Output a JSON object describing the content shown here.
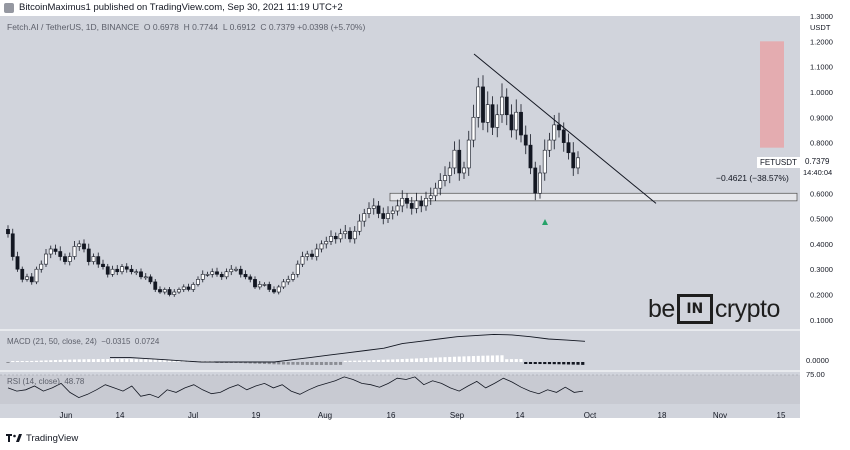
{
  "header": {
    "published_by": "BitcoinMaximus1 published on TradingView.com, Sep 30, 2021 11:19 UTC+2"
  },
  "legend": {
    "symbol": "Fetch.AI / TetherUS, 1D, BINANCE",
    "open_label": "O",
    "open": "0.6978",
    "high_label": "H",
    "high": "0.7744",
    "low_label": "L",
    "low": "0.6912",
    "close_label": "C",
    "close": "0.7379",
    "change": "+0.0398 (+5.70%)"
  },
  "price_axis": {
    "currency": "USDT",
    "ticks": [
      "1.3000",
      "1.2000",
      "1.1000",
      "1.0000",
      "0.9000",
      "0.8000",
      "0.6000",
      "0.5000",
      "0.4000",
      "0.3000",
      "0.2000",
      "0.1000"
    ]
  },
  "price_tag": {
    "symbol": "FETUSDT",
    "value": "0.7379",
    "countdown": "14:40:04"
  },
  "measure": {
    "text": "−0.4621 (−38.57%)"
  },
  "macd": {
    "label": "MACD (21, 50, close, 24)",
    "v1": "−0.0315",
    "v2": "0.0724",
    "zero_tick": "0.0000"
  },
  "rsi": {
    "label": "RSI (14, close)",
    "value": "48.78",
    "top_tick": "75.00"
  },
  "time_axis": [
    "Jun",
    "14",
    "Jul",
    "19",
    "Aug",
    "16",
    "Sep",
    "14",
    "Oct",
    "18",
    "Nov",
    "15"
  ],
  "watermark": {
    "left": "be",
    "middle": "IN",
    "right": "crypto"
  },
  "footer": {
    "brand": "TradingView"
  },
  "chart_data": {
    "type": "candlestick",
    "title": "Fetch.AI / TetherUS, 1D, BINANCE",
    "ylim": [
      0.1,
      1.3
    ],
    "support_zone": [
      0.57,
      0.6
    ],
    "target_zone": [
      0.78,
      1.2
    ],
    "trendline": {
      "from": [
        "Sep 7",
        1.15
      ],
      "to": [
        "Oct 21",
        0.56
      ]
    },
    "closes": [
      0.44,
      0.35,
      0.3,
      0.26,
      0.27,
      0.25,
      0.3,
      0.32,
      0.36,
      0.38,
      0.37,
      0.35,
      0.33,
      0.35,
      0.39,
      0.4,
      0.38,
      0.33,
      0.35,
      0.32,
      0.31,
      0.28,
      0.3,
      0.29,
      0.31,
      0.3,
      0.29,
      0.29,
      0.27,
      0.27,
      0.25,
      0.22,
      0.21,
      0.22,
      0.2,
      0.21,
      0.22,
      0.23,
      0.22,
      0.24,
      0.26,
      0.28,
      0.28,
      0.29,
      0.28,
      0.27,
      0.29,
      0.3,
      0.3,
      0.28,
      0.27,
      0.26,
      0.23,
      0.24,
      0.24,
      0.22,
      0.21,
      0.23,
      0.25,
      0.26,
      0.28,
      0.32,
      0.35,
      0.36,
      0.35,
      0.38,
      0.4,
      0.41,
      0.43,
      0.42,
      0.44,
      0.45,
      0.42,
      0.45,
      0.49,
      0.52,
      0.54,
      0.55,
      0.52,
      0.5,
      0.52,
      0.53,
      0.55,
      0.58,
      0.56,
      0.54,
      0.57,
      0.55,
      0.58,
      0.59,
      0.62,
      0.65,
      0.67,
      0.7,
      0.77,
      0.68,
      0.7,
      0.81,
      0.9,
      1.02,
      0.88,
      0.95,
      0.86,
      0.91,
      0.98,
      0.91,
      0.85,
      0.92,
      0.83,
      0.79,
      0.7,
      0.6,
      0.68,
      0.77,
      0.81,
      0.87,
      0.85,
      0.8,
      0.76,
      0.7,
      0.74
    ],
    "macd_line_points": [
      0.02,
      0.02,
      0.015,
      0.01,
      0.005,
      0.0,
      0.0,
      0.0,
      0.0,
      0.0,
      0.01,
      0.02,
      0.03,
      0.04,
      0.05,
      0.06,
      0.08,
      0.09,
      0.1,
      0.11,
      0.115,
      0.12,
      0.118,
      0.11,
      0.1,
      0.095,
      0.09
    ],
    "rsi_points": [
      55,
      50,
      52,
      58,
      50,
      55,
      62,
      48,
      40,
      45,
      52,
      60,
      55,
      50,
      58,
      42,
      45,
      40,
      52,
      48,
      55,
      60,
      52,
      46,
      48,
      55,
      60,
      52,
      58,
      62,
      55,
      60,
      50,
      45,
      52,
      58,
      62,
      66,
      72,
      68,
      62,
      60,
      56,
      62,
      70,
      68,
      72,
      60,
      66,
      62,
      55,
      50,
      58,
      65,
      55,
      62,
      70,
      64,
      56,
      50,
      46,
      52,
      48,
      56,
      48,
      50
    ]
  }
}
